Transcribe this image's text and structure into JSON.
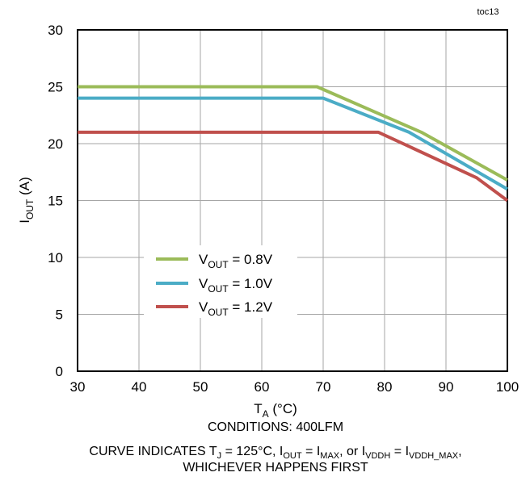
{
  "figure_id": "toc13",
  "chart_data": {
    "type": "line",
    "xlabel": {
      "main": "T",
      "sub": "A",
      "rest": " (°C)"
    },
    "ylabel": {
      "main": "I",
      "sub": "OUT",
      "rest": " (A)"
    },
    "xlim": [
      30,
      100
    ],
    "ylim": [
      0,
      30
    ],
    "xticks": [
      30,
      40,
      50,
      60,
      70,
      80,
      90,
      100
    ],
    "yticks": [
      0,
      5,
      10,
      15,
      20,
      25,
      30
    ],
    "grid": true,
    "legend_position": "middle-left",
    "series": [
      {
        "name": "V_OUT = 0.8V",
        "label_main": "V",
        "label_sub": "OUT",
        "label_rest": " = 0.8V",
        "color": "#9bbb59",
        "x": [
          30,
          69,
          86,
          100
        ],
        "y": [
          25,
          25,
          21,
          16.8
        ]
      },
      {
        "name": "V_OUT = 1.0V",
        "label_main": "V",
        "label_sub": "OUT",
        "label_rest": " = 1.0V",
        "color": "#4bacc6",
        "x": [
          30,
          70,
          84,
          100
        ],
        "y": [
          24,
          24,
          21,
          16
        ]
      },
      {
        "name": "V_OUT = 1.2V",
        "label_main": "V",
        "label_sub": "OUT",
        "label_rest": " = 1.2V",
        "color": "#c0504d",
        "x": [
          30,
          79,
          95,
          100
        ],
        "y": [
          21,
          21,
          17,
          15
        ]
      }
    ]
  },
  "notes": {
    "conditions": "CONDITIONS:  400LFM",
    "curve_note": {
      "p1": "CURVE INDICATES  T",
      "p1_sub": "J",
      "p2": " = 125°C,  I",
      "p2_sub": "OUT",
      "p3": " = I",
      "p3_sub": "MAX",
      "p4": ",  or I",
      "p4_sub": "VDDH",
      "p5": " = I",
      "p5_sub": "VDDH_MAX",
      "p6": ","
    },
    "whichever": "WHICHEVER HAPPENS FIRST"
  }
}
